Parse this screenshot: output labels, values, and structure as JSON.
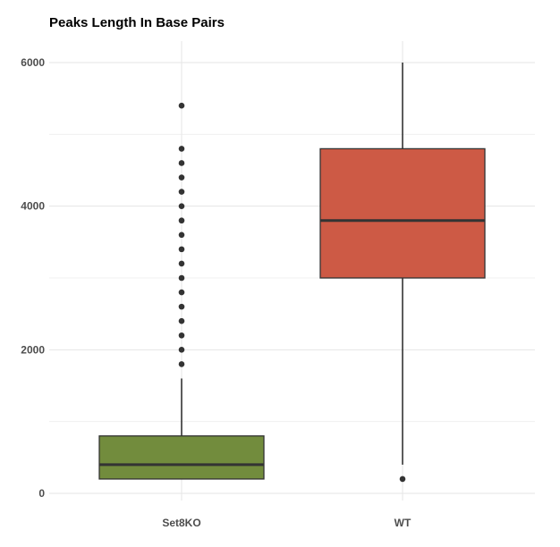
{
  "chart_data": {
    "type": "boxplot",
    "title": "Peaks Length In Base Pairs",
    "xlabel": "",
    "ylabel": "",
    "ylim": [
      -100,
      6300
    ],
    "yticks": [
      0,
      2000,
      4000,
      6000
    ],
    "y_tick_labels": [
      "0",
      "2000",
      "4000",
      "6000"
    ],
    "grid": true,
    "legend": "none",
    "categories": [
      "Set8KO",
      "WT"
    ],
    "boxes": [
      {
        "name": "Set8KO",
        "color": "#728c3d",
        "whisker_low": 200,
        "q1": 200,
        "median": 400,
        "q3": 800,
        "whisker_high": 1600,
        "outliers": [
          1800,
          2000,
          2200,
          2400,
          2600,
          2800,
          3000,
          3200,
          3400,
          3600,
          3800,
          4000,
          4200,
          4400,
          4600,
          4800,
          5400
        ]
      },
      {
        "name": "WT",
        "color": "#cd5a45",
        "whisker_low": 400,
        "q1": 3000,
        "median": 3800,
        "q3": 4800,
        "whisker_high": 6000,
        "outliers": [
          200
        ]
      }
    ]
  }
}
